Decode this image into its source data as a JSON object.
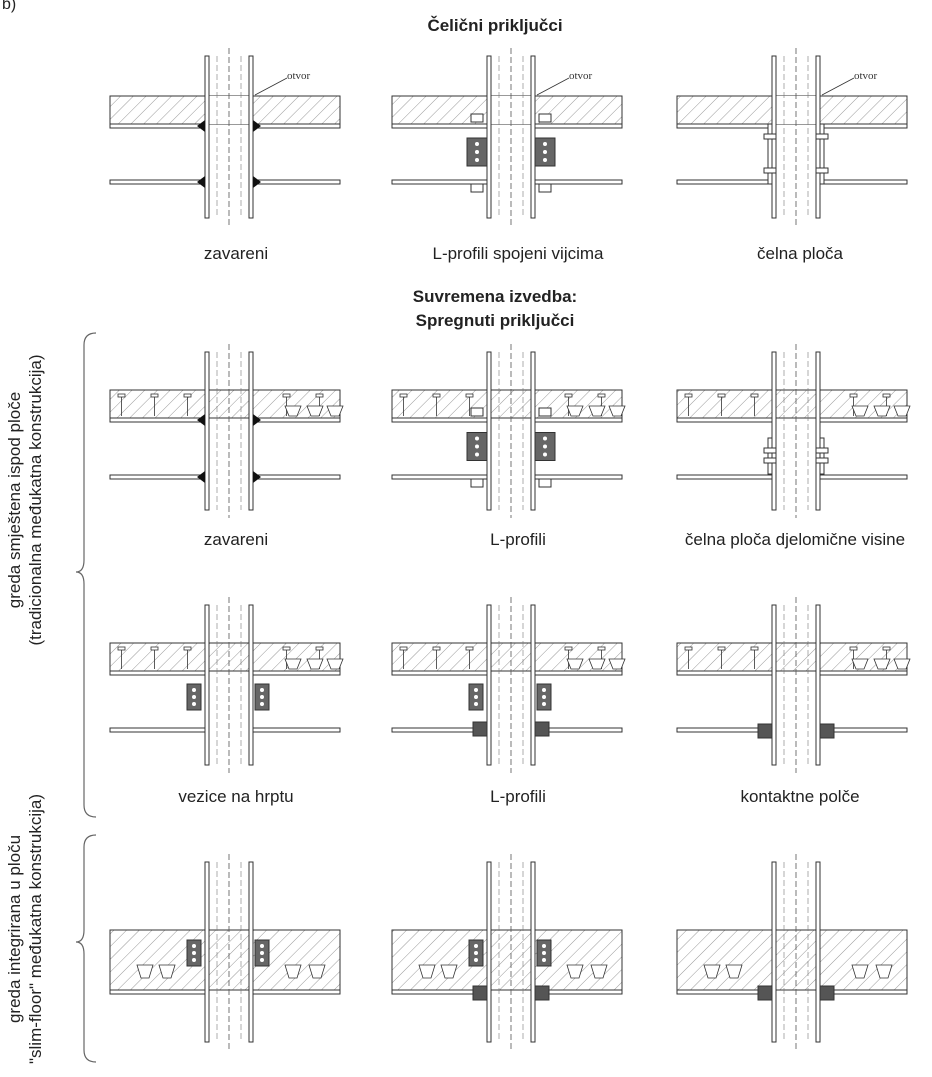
{
  "figure": {
    "panel_letter": "b)",
    "title_steel": "Čelični priključci",
    "title_modern_line1": "Suvremena izvedba:",
    "title_modern_line2": "Spregnuti priključci",
    "hole_label": "otvor",
    "captions": {
      "r1c1": "zavareni",
      "r1c2": "L-profili spojeni vijcima",
      "r1c3": "čelna ploča",
      "r2c1": "zavareni",
      "r2c2": "L-profili",
      "r2c3": "čelna ploča djelomične visine",
      "r3c1": "vezice na hrptu",
      "r3c2": "L-profili",
      "r3c3": "kontaktne polče"
    },
    "side_labels": {
      "traditional_line1": "greda smještena ispod ploče",
      "traditional_line2": "(tradicionalna međukatna konstrukcija)",
      "slimfloor_line1": "greda integrirana u ploču",
      "slimfloor_line2": "\"slim-floor\" međukatna konstrukcija)"
    },
    "colors": {
      "line": "#333333",
      "hatch": "#888888",
      "fill_dark": "#555555"
    }
  }
}
